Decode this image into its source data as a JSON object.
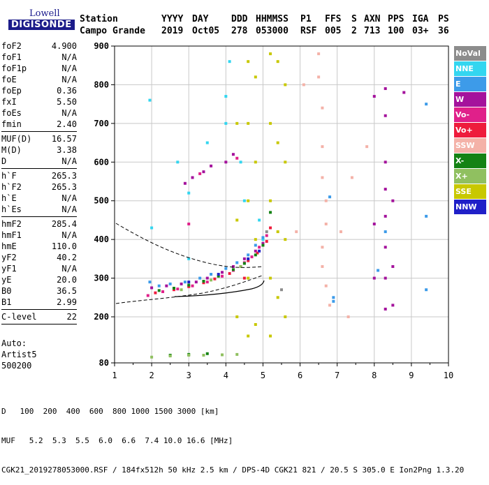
{
  "logo": {
    "line1": "Lowell",
    "line2": "DIGISONDE"
  },
  "header": {
    "station_label": "Station",
    "station_value": "Campo Grande",
    "yyyy_label": "YYYY",
    "yyyy_value": "2019",
    "day_label": "DAY",
    "day_value": "Oct05",
    "ddd_label": "DDD",
    "ddd_value": "278",
    "hhmmss_label": "HHMMSS",
    "hhmmss_value": "053000",
    "p1_label": "P1",
    "p1_value": "RSF",
    "ffs_label": "FFS",
    "ffs_value": "005",
    "s_label": "S",
    "s_value": "2",
    "axn_label": "AXN",
    "axn_value": "713",
    "pps_label": "PPS",
    "pps_value": "100",
    "iga_label": "IGA",
    "iga_value": "03+",
    "ps_label": "PS",
    "ps_value": "36"
  },
  "params": {
    "group1": [
      {
        "name": "foF2",
        "value": "4.900"
      },
      {
        "name": "foF1",
        "value": "N/A"
      },
      {
        "name": "foF1p",
        "value": "N/A"
      },
      {
        "name": "foE",
        "value": "N/A"
      },
      {
        "name": "foEp",
        "value": "0.36"
      },
      {
        "name": "fxI",
        "value": "5.50"
      },
      {
        "name": "foEs",
        "value": "N/A"
      },
      {
        "name": "fmin",
        "value": "2.40"
      }
    ],
    "group2": [
      {
        "name": "MUF(D)",
        "value": "16.57"
      },
      {
        "name": "M(D)",
        "value": "3.38"
      },
      {
        "name": "D",
        "value": "N/A"
      }
    ],
    "group3": [
      {
        "name": "h`F",
        "value": "265.3"
      },
      {
        "name": "h`F2",
        "value": "265.3"
      },
      {
        "name": "h`E",
        "value": "N/A"
      },
      {
        "name": "h`Es",
        "value": "N/A"
      }
    ],
    "group4": [
      {
        "name": "hmF2",
        "value": "285.4"
      },
      {
        "name": "hmF1",
        "value": "N/A"
      },
      {
        "name": "hmE",
        "value": "110.0"
      },
      {
        "name": "yF2",
        "value": "40.2"
      },
      {
        "name": "yF1",
        "value": "N/A"
      },
      {
        "name": "yE",
        "value": "20.0"
      },
      {
        "name": "B0",
        "value": "36.5"
      },
      {
        "name": "B1",
        "value": "2.99"
      }
    ],
    "group5": [
      {
        "name": "C-level",
        "value": "22"
      }
    ]
  },
  "auto": {
    "line1": "Auto:",
    "line2": "Artist5",
    "line3": "500200"
  },
  "legend": [
    {
      "label": "NoVal",
      "color": "#8c8c8c"
    },
    {
      "label": "NNE",
      "color": "#33d6f0"
    },
    {
      "label": "E",
      "color": "#3d9be9"
    },
    {
      "label": "W",
      "color": "#a4129c"
    },
    {
      "label": "Vo-",
      "color": "#e0208a"
    },
    {
      "label": "Vo+",
      "color": "#ee1c3c"
    },
    {
      "label": "SSW",
      "color": "#f4b2a8"
    },
    {
      "label": "X-",
      "color": "#148214"
    },
    {
      "label": "X+",
      "color": "#90c060"
    },
    {
      "label": "SSE",
      "color": "#c8c800"
    },
    {
      "label": "NNW",
      "color": "#2020c8"
    }
  ],
  "bottom": {
    "d_label": "D",
    "d_values": [
      "100",
      "200",
      "400",
      "600",
      "800",
      "1000",
      "1500",
      "3000"
    ],
    "d_unit": "[km]",
    "muf_label": "MUF",
    "muf_values": [
      "5.2",
      "5.3",
      "5.5",
      "6.0",
      "6.6",
      "7.4",
      "10.0",
      "16.6"
    ],
    "muf_unit": "[MHz]",
    "footer": "CGK21_2019278053000.RSF / 184fx512h 50 kHz 2.5 km / DPS-4D CGK21 821 / 20.5 S 305.0 E Ion2Png 1.3.20"
  },
  "chart_data": {
    "type": "scatter",
    "xlim": [
      1,
      10
    ],
    "ylim": [
      80,
      900
    ],
    "xticks": [
      "1",
      "2",
      "3",
      "4",
      "5",
      "6",
      "7",
      "8",
      "9",
      "10"
    ],
    "yticks": [
      "80",
      "200",
      "300",
      "400",
      "500",
      "600",
      "700",
      "800",
      "900"
    ],
    "grid": true,
    "series": [
      {
        "name": "NNE",
        "points": [
          [
            1.95,
            760
          ],
          [
            2.0,
            430
          ],
          [
            2.7,
            600
          ],
          [
            3.0,
            350
          ],
          [
            3.0,
            520
          ],
          [
            3.5,
            650
          ],
          [
            4.0,
            770
          ],
          [
            4.0,
            700
          ],
          [
            4.1,
            860
          ],
          [
            4.4,
            600
          ],
          [
            4.5,
            500
          ],
          [
            4.9,
            450
          ],
          [
            5.0,
            400
          ]
        ]
      },
      {
        "name": "E",
        "points": [
          [
            1.95,
            290
          ],
          [
            2.2,
            280
          ],
          [
            2.5,
            285
          ],
          [
            2.9,
            290
          ],
          [
            3.3,
            300
          ],
          [
            3.6,
            310
          ],
          [
            4.0,
            325
          ],
          [
            4.3,
            340
          ],
          [
            4.6,
            360
          ],
          [
            4.8,
            385
          ],
          [
            5.0,
            405
          ],
          [
            6.8,
            510
          ],
          [
            6.9,
            250
          ],
          [
            6.9,
            240
          ],
          [
            8.1,
            320
          ],
          [
            8.3,
            420
          ],
          [
            9.4,
            750
          ],
          [
            9.4,
            460
          ],
          [
            9.4,
            270
          ]
        ]
      },
      {
        "name": "W",
        "points": [
          [
            2.0,
            275
          ],
          [
            2.4,
            280
          ],
          [
            2.8,
            285
          ],
          [
            3.2,
            290
          ],
          [
            3.5,
            300
          ],
          [
            3.9,
            315
          ],
          [
            4.2,
            330
          ],
          [
            4.5,
            350
          ],
          [
            4.8,
            370
          ],
          [
            5.0,
            390
          ],
          [
            2.9,
            545
          ],
          [
            3.1,
            560
          ],
          [
            3.4,
            575
          ],
          [
            3.6,
            590
          ],
          [
            8.0,
            770
          ],
          [
            8.0,
            440
          ],
          [
            8.0,
            300
          ],
          [
            8.3,
            790
          ],
          [
            8.3,
            720
          ],
          [
            8.3,
            600
          ],
          [
            8.3,
            530
          ],
          [
            8.3,
            460
          ],
          [
            8.3,
            380
          ],
          [
            8.3,
            300
          ],
          [
            8.3,
            220
          ],
          [
            8.5,
            500
          ],
          [
            8.5,
            330
          ],
          [
            8.5,
            230
          ],
          [
            8.8,
            780
          ],
          [
            4.0,
            600
          ],
          [
            4.2,
            620
          ]
        ]
      },
      {
        "name": "Vo-",
        "points": [
          [
            1.9,
            255
          ],
          [
            2.3,
            265
          ],
          [
            2.7,
            272
          ],
          [
            3.1,
            280
          ],
          [
            3.5,
            290
          ],
          [
            3.9,
            305
          ],
          [
            4.2,
            320
          ],
          [
            4.5,
            340
          ],
          [
            4.7,
            355
          ],
          [
            4.9,
            380
          ],
          [
            5.1,
            410
          ],
          [
            3.0,
            440
          ],
          [
            3.3,
            570
          ],
          [
            4.3,
            610
          ]
        ]
      },
      {
        "name": "Vo+",
        "points": [
          [
            2.1,
            262
          ],
          [
            2.6,
            270
          ],
          [
            3.0,
            278
          ],
          [
            3.4,
            288
          ],
          [
            3.7,
            298
          ],
          [
            4.1,
            312
          ],
          [
            4.4,
            330
          ],
          [
            4.6,
            345
          ],
          [
            4.85,
            365
          ],
          [
            5.1,
            395
          ],
          [
            5.2,
            430
          ],
          [
            4.5,
            300
          ]
        ]
      },
      {
        "name": "SSW",
        "points": [
          [
            6.5,
            880
          ],
          [
            6.5,
            820
          ],
          [
            6.6,
            740
          ],
          [
            6.6,
            640
          ],
          [
            6.6,
            560
          ],
          [
            6.7,
            500
          ],
          [
            6.7,
            440
          ],
          [
            6.6,
            380
          ],
          [
            6.6,
            330
          ],
          [
            6.7,
            280
          ],
          [
            6.8,
            230
          ],
          [
            7.4,
            560
          ],
          [
            7.1,
            420
          ],
          [
            7.3,
            200
          ],
          [
            7.8,
            640
          ],
          [
            6.1,
            800
          ],
          [
            5.9,
            420
          ]
        ]
      },
      {
        "name": "X-",
        "points": [
          [
            2.2,
            268
          ],
          [
            2.6,
            274
          ],
          [
            3.0,
            282
          ],
          [
            3.4,
            292
          ],
          [
            3.8,
            305
          ],
          [
            4.2,
            322
          ],
          [
            4.5,
            338
          ],
          [
            4.8,
            360
          ],
          [
            5.0,
            385
          ],
          [
            5.2,
            470
          ],
          [
            2.5,
            100
          ],
          [
            3.0,
            102
          ],
          [
            3.5,
            104
          ]
        ]
      },
      {
        "name": "X+",
        "points": [
          [
            2.0,
            95
          ],
          [
            2.5,
            98
          ],
          [
            3.0,
            100
          ],
          [
            3.4,
            100
          ],
          [
            3.9,
            101
          ],
          [
            4.3,
            102
          ],
          [
            2.8,
            270
          ],
          [
            3.6,
            295
          ],
          [
            4.4,
            330
          ]
        ]
      },
      {
        "name": "SSE",
        "points": [
          [
            4.6,
            860
          ],
          [
            4.6,
            700
          ],
          [
            4.6,
            500
          ],
          [
            4.6,
            300
          ],
          [
            4.6,
            150
          ],
          [
            4.8,
            820
          ],
          [
            4.8,
            600
          ],
          [
            4.8,
            400
          ],
          [
            4.8,
            180
          ],
          [
            5.2,
            880
          ],
          [
            5.2,
            700
          ],
          [
            5.2,
            500
          ],
          [
            5.2,
            300
          ],
          [
            5.2,
            150
          ],
          [
            5.4,
            860
          ],
          [
            5.4,
            650
          ],
          [
            5.4,
            420
          ],
          [
            5.4,
            250
          ],
          [
            5.6,
            800
          ],
          [
            5.6,
            600
          ],
          [
            5.6,
            400
          ],
          [
            5.6,
            200
          ],
          [
            4.3,
            700
          ],
          [
            4.3,
            450
          ],
          [
            4.3,
            200
          ]
        ]
      },
      {
        "name": "NNW",
        "points": [
          [
            3.0,
            290
          ],
          [
            3.8,
            310
          ],
          [
            4.6,
            350
          ],
          [
            4.9,
            370
          ]
        ]
      },
      {
        "name": "NoVal",
        "points": [
          [
            5.1,
            420
          ],
          [
            5.5,
            270
          ]
        ]
      }
    ]
  }
}
